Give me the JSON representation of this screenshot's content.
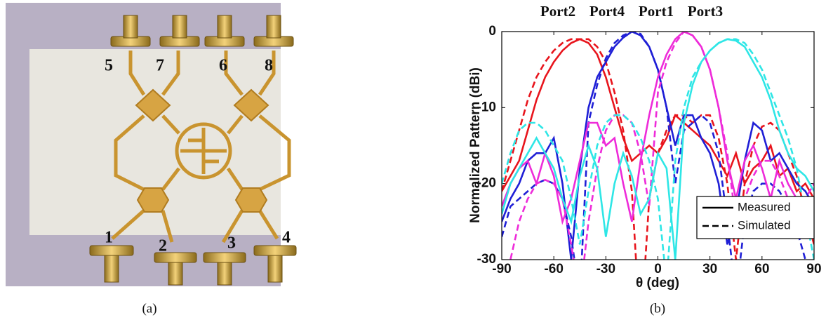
{
  "figure_a": {
    "caption": "(a)",
    "port_labels": [
      "5",
      "7",
      "6",
      "8",
      "1",
      "2",
      "3",
      "4"
    ]
  },
  "chart_data": {
    "type": "line",
    "caption": "(b)",
    "xlabel": "θ (deg)",
    "ylabel": "Normalized Pattern (dBi)",
    "xlim": [
      -90,
      90
    ],
    "ylim": [
      -30,
      0
    ],
    "xticks": [
      -90,
      -60,
      -30,
      0,
      30,
      60,
      90
    ],
    "yticks": [
      -30,
      -20,
      -10,
      0
    ],
    "legend": {
      "position": "lower right",
      "entries": [
        {
          "name": "Measured",
          "dash": "solid"
        },
        {
          "name": "Simulated",
          "dash": "dashed"
        }
      ]
    },
    "x": [
      -90,
      -85,
      -80,
      -75,
      -70,
      -65,
      -60,
      -55,
      -50,
      -45,
      -40,
      -35,
      -30,
      -25,
      -20,
      -15,
      -10,
      -5,
      0,
      5,
      10,
      15,
      20,
      25,
      30,
      35,
      40,
      45,
      50,
      55,
      60,
      65,
      70,
      75,
      80,
      85,
      90
    ],
    "series": [
      {
        "name": "Port2",
        "color": "#e8141c",
        "measured": [
          -21,
          -19,
          -17,
          -13,
          -9,
          -6,
          -4,
          -2.5,
          -1.5,
          -1,
          -1.5,
          -3,
          -6,
          -10,
          -14,
          -17,
          -16,
          -15,
          -16,
          -14,
          -11,
          -12,
          -13,
          -14,
          -15,
          -17,
          -19,
          -16,
          -20,
          -18,
          -17,
          -15,
          -19,
          -18,
          -21,
          -20,
          -22
        ],
        "simulated": [
          -21,
          -17,
          -13,
          -9,
          -6,
          -4,
          -2.5,
          -1.5,
          -1,
          -1,
          -1,
          -2,
          -4,
          -8,
          -13,
          -21,
          -40,
          -22,
          -16,
          -13,
          -11,
          -11,
          -12,
          -11,
          -11,
          -14,
          -20,
          -30,
          -20,
          -15,
          -12.5,
          -12,
          -13,
          -16,
          -19,
          -24,
          -28
        ]
      },
      {
        "name": "Port4",
        "color": "#1f1fd6",
        "measured": [
          -25,
          -22,
          -20,
          -17,
          -16,
          -16,
          -14,
          -20,
          -30,
          -18,
          -10,
          -6,
          -4,
          -2,
          -0.8,
          0,
          -0.5,
          -2,
          -5,
          -10,
          -15,
          -11,
          -11,
          -14,
          -16,
          -20,
          -28,
          -24,
          -17,
          -12,
          -13,
          -17,
          -16,
          -18,
          -20,
          -21,
          -23
        ],
        "simulated": [
          -27,
          -23,
          -22,
          -21,
          -20,
          -19.5,
          -20,
          -22,
          -27,
          -35,
          -12,
          -7,
          -3.5,
          -1.5,
          -0.5,
          0,
          -0.3,
          -2,
          -5,
          -10,
          -20,
          -13,
          -12,
          -11,
          -12,
          -16,
          -25,
          -35,
          -25,
          -21,
          -20,
          -20,
          -21,
          -23,
          -26,
          -30,
          -35
        ]
      },
      {
        "name": "Port1",
        "color": "#ee2bd9",
        "measured": [
          -23,
          -20,
          -18,
          -17,
          -20,
          -16,
          -19,
          -25,
          -22,
          -17,
          -12,
          -12,
          -15,
          -14,
          -20,
          -25,
          -17,
          -11,
          -6,
          -3,
          -1,
          0,
          -0.5,
          -2,
          -5,
          -10,
          -17,
          -22,
          -17,
          -15,
          -18,
          -22,
          -17,
          -20,
          -22,
          -24,
          -25
        ],
        "simulated": [
          -35,
          -30,
          -25,
          -22,
          -20,
          -19.5,
          -20,
          -22,
          -28,
          -35,
          -25,
          -18,
          -13,
          -11,
          -11,
          -12,
          -16,
          -23,
          -8,
          -4,
          -1.5,
          0,
          -0.5,
          -2,
          -5,
          -10,
          -16,
          -25,
          -22,
          -19,
          -17,
          -17,
          -19,
          -22,
          -24,
          -22,
          -20
        ]
      },
      {
        "name": "Port3",
        "color": "#2ee6e6",
        "measured": [
          -24,
          -20,
          -18,
          -16,
          -14,
          -16,
          -18,
          -22,
          -25,
          -19,
          -15,
          -18,
          -27,
          -20,
          -16,
          -19,
          -24,
          -22,
          -16,
          -18,
          -30,
          -12,
          -7,
          -4,
          -2.5,
          -1.5,
          -1,
          -1.2,
          -2,
          -4,
          -6,
          -9,
          -13,
          -16,
          -18,
          -19,
          -21
        ],
        "simulated": [
          -20,
          -16,
          -13,
          -12,
          -12,
          -13,
          -15,
          -17,
          -22,
          -28,
          -21,
          -15,
          -12,
          -11,
          -11,
          -12,
          -14,
          -17,
          -22,
          -33,
          -17,
          -10,
          -6,
          -4,
          -2.5,
          -1.5,
          -1,
          -1,
          -1.5,
          -3,
          -5,
          -8,
          -11,
          -14,
          -18,
          -24,
          -30
        ]
      }
    ]
  }
}
